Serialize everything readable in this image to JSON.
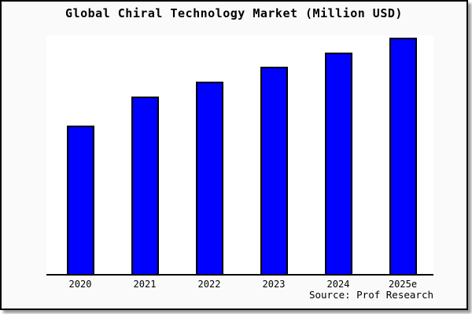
{
  "source_note": "Source: Prof Research",
  "colors": {
    "bar_fill": "#0000ff",
    "bar_edge": "#000000",
    "card_background": "#fafafa",
    "plot_background": "#ffffff",
    "border": "#000000",
    "shadow": "#9c9c9c",
    "text": "#000000"
  },
  "chart_data": {
    "type": "bar",
    "title": "Global Chiral Technology Market (Million USD)",
    "categories": [
      "2020",
      "2021",
      "2022",
      "2023",
      "2024",
      "2025e"
    ],
    "values": [
      62.2,
      74.3,
      80.6,
      86.8,
      92.8,
      99.0
    ],
    "values_note": "no numeric y-axis is shown in the chart; values are bar heights as percent of plot height",
    "xlabel": "",
    "ylabel": "",
    "ylim": [
      0,
      100
    ],
    "gridlines": false,
    "legend": false,
    "y_axis_visible": false,
    "x_axis_line": true,
    "bar_fill": "#0000ff",
    "bar_edge": "#000000"
  }
}
